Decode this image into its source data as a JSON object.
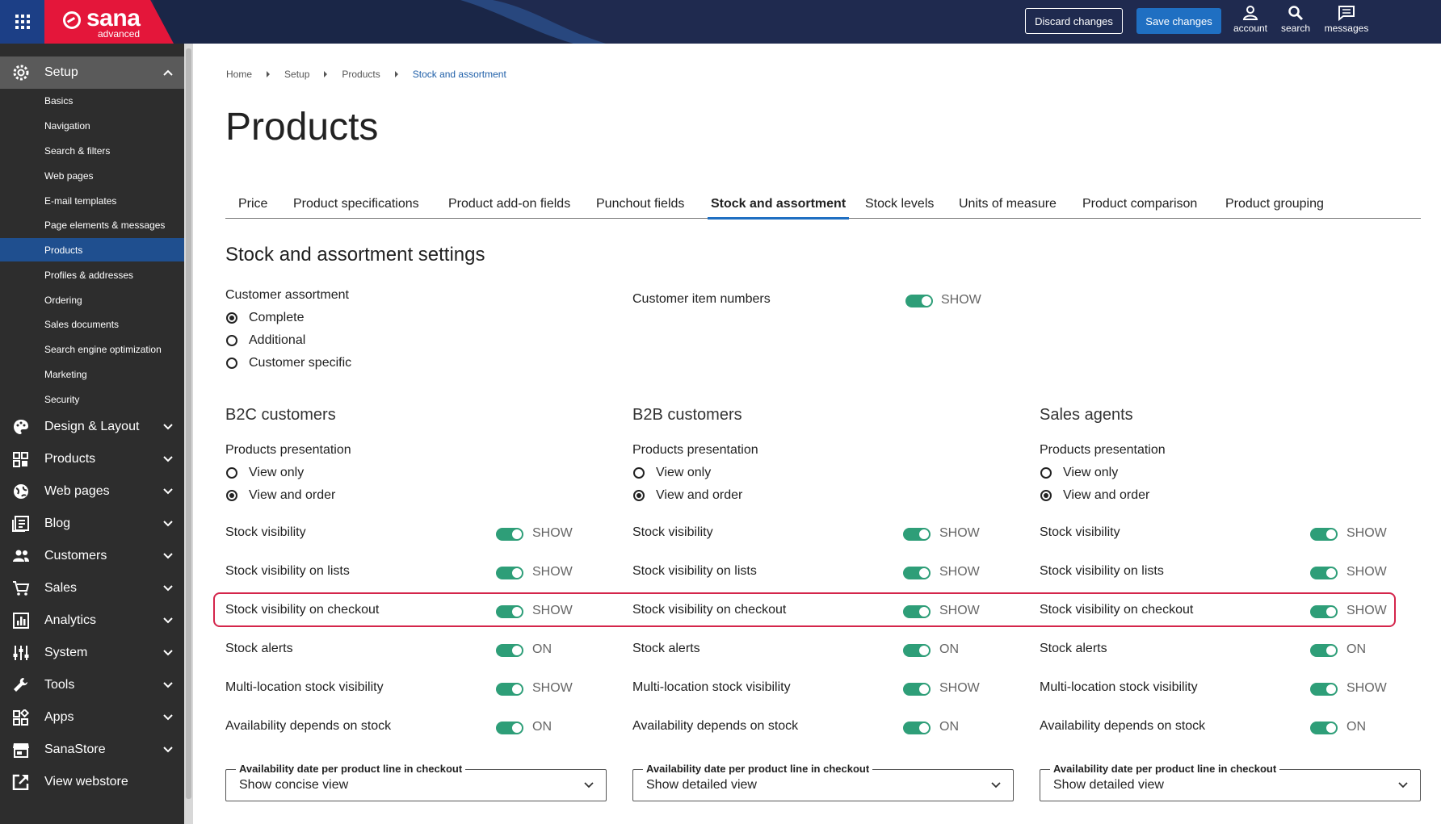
{
  "header": {
    "logo_text": "sana",
    "logo_sub": "advanced",
    "discard_label": "Discard changes",
    "save_label": "Save changes",
    "tools": [
      {
        "label": "account",
        "icon": "account-icon"
      },
      {
        "label": "search",
        "icon": "search-icon"
      },
      {
        "label": "messages",
        "icon": "messages-icon"
      }
    ]
  },
  "sidebar": {
    "setup": {
      "label": "Setup",
      "icon": "gear-icon"
    },
    "setup_items": [
      {
        "label": "Basics"
      },
      {
        "label": "Navigation"
      },
      {
        "label": "Search & filters"
      },
      {
        "label": "Web pages"
      },
      {
        "label": "E-mail templates"
      },
      {
        "label": "Page elements & messages"
      },
      {
        "label": "Products",
        "active": true
      },
      {
        "label": "Profiles & addresses"
      },
      {
        "label": "Ordering"
      },
      {
        "label": "Sales documents"
      },
      {
        "label": "Search engine optimization"
      },
      {
        "label": "Marketing"
      },
      {
        "label": "Security"
      }
    ],
    "sections": [
      {
        "label": "Design & Layout",
        "icon": "palette-icon"
      },
      {
        "label": "Products",
        "icon": "products-icon"
      },
      {
        "label": "Web pages",
        "icon": "globe-icon"
      },
      {
        "label": "Blog",
        "icon": "blog-icon"
      },
      {
        "label": "Customers",
        "icon": "customers-icon"
      },
      {
        "label": "Sales",
        "icon": "cart-icon"
      },
      {
        "label": "Analytics",
        "icon": "analytics-icon"
      },
      {
        "label": "System",
        "icon": "system-icon"
      },
      {
        "label": "Tools",
        "icon": "wrench-icon"
      },
      {
        "label": "Apps",
        "icon": "apps-icon"
      },
      {
        "label": "SanaStore",
        "icon": "store-icon"
      },
      {
        "label": "View webstore",
        "icon": "external-link-icon"
      }
    ]
  },
  "breadcrumb": [
    "Home",
    "Setup",
    "Products",
    "Stock and assortment"
  ],
  "page_title": "Products",
  "tabs": [
    {
      "label": "Price"
    },
    {
      "label": "Product specifications"
    },
    {
      "label": "Product add-on fields"
    },
    {
      "label": "Punchout fields"
    },
    {
      "label": "Stock and assortment",
      "active": true
    },
    {
      "label": "Stock levels"
    },
    {
      "label": "Units of measure"
    },
    {
      "label": "Product comparison"
    },
    {
      "label": "Product grouping"
    }
  ],
  "section_title": "Stock and assortment settings",
  "customer_assortment": {
    "label": "Customer assortment",
    "options": [
      "Complete",
      "Additional",
      "Customer specific"
    ],
    "selected": "Complete"
  },
  "customer_item_numbers": {
    "label": "Customer item numbers",
    "state": "SHOW"
  },
  "groups": [
    {
      "title": "B2C customers",
      "presentation_label": "Products presentation",
      "presentation_options": [
        "View only",
        "View and order"
      ],
      "presentation_selected": "View and order",
      "settings": [
        {
          "label": "Stock visibility",
          "state": "SHOW"
        },
        {
          "label": "Stock visibility on lists",
          "state": "SHOW"
        },
        {
          "label": "Stock visibility on checkout",
          "state": "SHOW"
        },
        {
          "label": "Stock alerts",
          "state": "ON"
        },
        {
          "label": "Multi-location stock visibility",
          "state": "SHOW"
        },
        {
          "label": "Availability depends on stock",
          "state": "ON"
        }
      ],
      "select_label": "Availability date per product line in checkout",
      "select_value": "Show concise view"
    },
    {
      "title": "B2B customers",
      "presentation_label": "Products presentation",
      "presentation_options": [
        "View only",
        "View and order"
      ],
      "presentation_selected": "View and order",
      "settings": [
        {
          "label": "Stock visibility",
          "state": "SHOW"
        },
        {
          "label": "Stock visibility on lists",
          "state": "SHOW"
        },
        {
          "label": "Stock visibility on checkout",
          "state": "SHOW"
        },
        {
          "label": "Stock alerts",
          "state": "ON"
        },
        {
          "label": "Multi-location stock visibility",
          "state": "SHOW"
        },
        {
          "label": "Availability depends on stock",
          "state": "ON"
        }
      ],
      "select_label": "Availability date per product line in checkout",
      "select_value": "Show detailed view"
    },
    {
      "title": "Sales agents",
      "presentation_label": "Products presentation",
      "presentation_options": [
        "View only",
        "View and order"
      ],
      "presentation_selected": "View and order",
      "settings": [
        {
          "label": "Stock visibility",
          "state": "SHOW"
        },
        {
          "label": "Stock visibility on lists",
          "state": "SHOW"
        },
        {
          "label": "Stock visibility on checkout",
          "state": "SHOW"
        },
        {
          "label": "Stock alerts",
          "state": "ON"
        },
        {
          "label": "Multi-location stock visibility",
          "state": "SHOW"
        },
        {
          "label": "Availability depends on stock",
          "state": "ON"
        }
      ],
      "select_label": "Availability date per product line in checkout",
      "select_value": "Show detailed view"
    }
  ],
  "colors": {
    "accent": "#1f6fc2",
    "toggle_on": "#2e9e78",
    "highlight": "#d4254b",
    "brand": "#e4163a",
    "topbar": "#1f2a4f",
    "sidebar": "#2d2d2d"
  }
}
